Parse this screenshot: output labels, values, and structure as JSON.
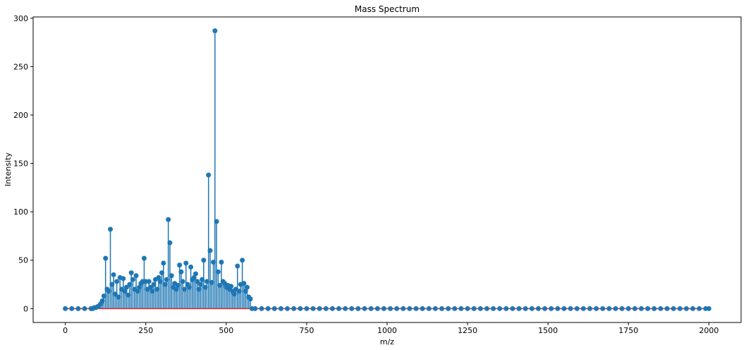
{
  "chart_data": {
    "type": "stem",
    "title": "Mass Spectrum",
    "xlabel": "m/z",
    "ylabel": "Intensity",
    "color": "#1f77b4",
    "baseline_color": "#d62728",
    "xlim": [
      -100,
      2100
    ],
    "ylim": [
      -14.35,
      301.35
    ],
    "xticks": [
      0,
      250,
      500,
      750,
      1000,
      1250,
      1500,
      1750,
      2000
    ],
    "yticks": [
      0,
      50,
      100,
      150,
      200,
      250,
      300
    ],
    "x": [
      0,
      20,
      40,
      60,
      80,
      85,
      90,
      95,
      100,
      105,
      110,
      115,
      120,
      125,
      130,
      135,
      140,
      145,
      150,
      155,
      160,
      165,
      170,
      175,
      180,
      185,
      190,
      195,
      200,
      205,
      210,
      215,
      220,
      225,
      230,
      235,
      240,
      245,
      250,
      255,
      260,
      265,
      270,
      275,
      280,
      285,
      290,
      295,
      300,
      305,
      310,
      315,
      320,
      325,
      330,
      335,
      340,
      345,
      350,
      355,
      360,
      365,
      370,
      375,
      380,
      385,
      390,
      395,
      400,
      405,
      410,
      415,
      420,
      425,
      430,
      435,
      440,
      445,
      450,
      455,
      460,
      465,
      470,
      475,
      480,
      485,
      490,
      495,
      500,
      505,
      510,
      515,
      520,
      525,
      530,
      535,
      540,
      545,
      550,
      555,
      560,
      565,
      570,
      575,
      580,
      590,
      610,
      630,
      650,
      670,
      690,
      710,
      730,
      750,
      770,
      790,
      810,
      830,
      850,
      870,
      890,
      910,
      930,
      950,
      970,
      990,
      1010,
      1030,
      1050,
      1070,
      1090,
      1110,
      1130,
      1150,
      1170,
      1190,
      1210,
      1230,
      1250,
      1270,
      1290,
      1310,
      1330,
      1350,
      1370,
      1390,
      1410,
      1430,
      1450,
      1470,
      1490,
      1510,
      1530,
      1550,
      1570,
      1590,
      1610,
      1630,
      1650,
      1670,
      1690,
      1710,
      1730,
      1750,
      1770,
      1790,
      1810,
      1830,
      1850,
      1870,
      1890,
      1910,
      1930,
      1950,
      1970,
      1990,
      2000
    ],
    "values": [
      0,
      0,
      0,
      0,
      0,
      0,
      1,
      1,
      2,
      3,
      5,
      8,
      13,
      52,
      20,
      18,
      82,
      25,
      35,
      15,
      28,
      12,
      32,
      20,
      31,
      18,
      22,
      14,
      25,
      37,
      30,
      20,
      34,
      18,
      22,
      26,
      28,
      52,
      28,
      20,
      28,
      22,
      18,
      25,
      30,
      20,
      32,
      28,
      37,
      47,
      25,
      30,
      92,
      68,
      34,
      22,
      26,
      20,
      24,
      45,
      38,
      28,
      20,
      47,
      25,
      22,
      43,
      30,
      32,
      36,
      28,
      20,
      25,
      30,
      50,
      22,
      28,
      138,
      60,
      27,
      48,
      287,
      90,
      38,
      24,
      48,
      28,
      26,
      22,
      24,
      20,
      23,
      18,
      15,
      20,
      44,
      18,
      25,
      50,
      26,
      18,
      22,
      12,
      10,
      0,
      0,
      0,
      0,
      0,
      0,
      0,
      0,
      0,
      0,
      0,
      0,
      0,
      0,
      0,
      0,
      0,
      0,
      0,
      0,
      0,
      0,
      0,
      0,
      0,
      0,
      0,
      0,
      0,
      0,
      0,
      0,
      0,
      0,
      0,
      0,
      0,
      0,
      0,
      0,
      0,
      0,
      0,
      0,
      0,
      0,
      0,
      0,
      0,
      0,
      0,
      0,
      0,
      0,
      0,
      0,
      0,
      0,
      0,
      0,
      0,
      0,
      0,
      0,
      0,
      0,
      0,
      0,
      0,
      0,
      0,
      0,
      0
    ]
  }
}
